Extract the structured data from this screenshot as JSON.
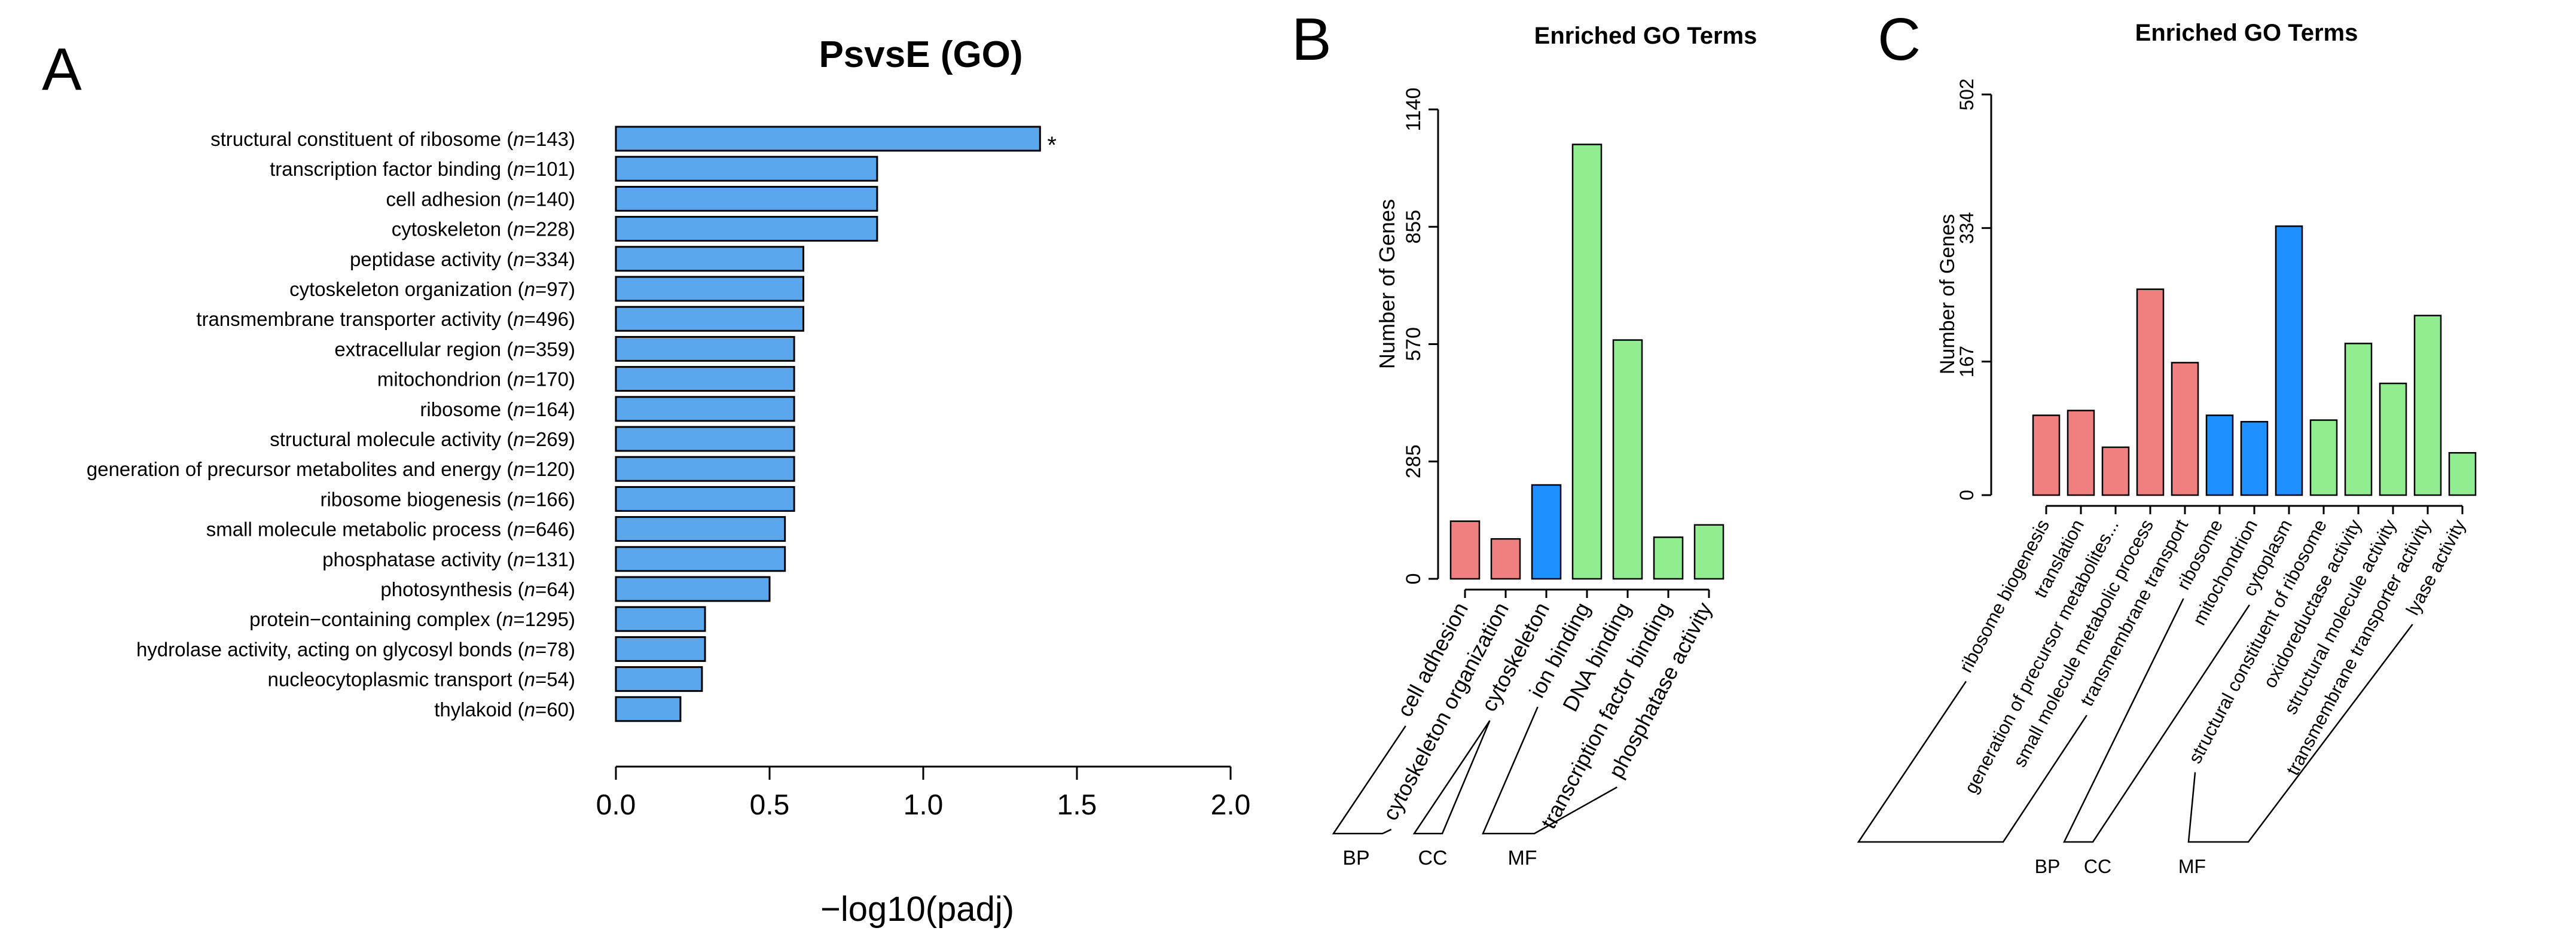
{
  "panels": [
    {
      "letter": "A"
    },
    {
      "letter": "B"
    },
    {
      "letter": "C"
    }
  ],
  "colors": {
    "bar_a": "#5BA7EE",
    "bp": "#F08080",
    "cc": "#1E90FF",
    "mf": "#90EE90",
    "stroke": "#000000"
  },
  "chart_data": [
    {
      "panel": "A",
      "type": "bar",
      "orientation": "horizontal",
      "title": "PsvsE (GO)",
      "xlabel": "−log10(padj)",
      "ylabel": "",
      "xlim": [
        0,
        2.0
      ],
      "xticks": [
        "0.0",
        "0.5",
        "1.0",
        "1.5",
        "2.0"
      ],
      "grid": false,
      "series": [
        {
          "values": [
            1.38,
            0.85,
            0.85,
            0.85,
            0.61,
            0.61,
            0.61,
            0.58,
            0.58,
            0.58,
            0.58,
            0.58,
            0.58,
            0.55,
            0.55,
            0.5,
            0.29,
            0.29,
            0.28,
            0.21
          ]
        }
      ],
      "categories": [
        {
          "term": "structural constituent of ribosome (",
          "n": "n",
          "count": "=143)"
        },
        {
          "term": "transcription factor binding (",
          "n": "n",
          "count": "=101)"
        },
        {
          "term": "cell adhesion (",
          "n": "n",
          "count": "=140)"
        },
        {
          "term": "cytoskeleton (",
          "n": "n",
          "count": "=228)"
        },
        {
          "term": "peptidase activity (",
          "n": "n",
          "count": "=334)"
        },
        {
          "term": "cytoskeleton organization (",
          "n": "n",
          "count": "=97)"
        },
        {
          "term": "transmembrane transporter activity (",
          "n": "n",
          "count": "=496)"
        },
        {
          "term": "extracellular region (",
          "n": "n",
          "count": "=359)"
        },
        {
          "term": "mitochondrion (",
          "n": "n",
          "count": "=170)"
        },
        {
          "term": "ribosome (",
          "n": "n",
          "count": "=164)"
        },
        {
          "term": "structural molecule activity (",
          "n": "n",
          "count": "=269)"
        },
        {
          "term": "generation of precursor metabolites and energy (",
          "n": "n",
          "count": "=120)"
        },
        {
          "term": "ribosome biogenesis (",
          "n": "n",
          "count": "=166)"
        },
        {
          "term": "small molecule metabolic process (",
          "n": "n",
          "count": "=646)"
        },
        {
          "term": "phosphatase activity (",
          "n": "n",
          "count": "=131)"
        },
        {
          "term": "photosynthesis (",
          "n": "n",
          "count": "=64)"
        },
        {
          "term": "protein−containing complex (",
          "n": "n",
          "count": "=1295)"
        },
        {
          "term": "hydrolase activity, acting on glycosyl bonds (",
          "n": "n",
          "count": "=78)"
        },
        {
          "term": "nucleocytoplasmic transport (",
          "n": "n",
          "count": "=54)"
        },
        {
          "term": "thylakoid (",
          "n": "n",
          "count": "=60)"
        }
      ],
      "annotations": [
        {
          "category_index": 0,
          "text": "*"
        }
      ]
    },
    {
      "panel": "B",
      "type": "bar",
      "title": "Enriched GO Terms",
      "xlabel": "",
      "ylabel": "Number of Genes",
      "ylim": [
        0,
        1140
      ],
      "yticks": [
        "0",
        "285",
        "570",
        "855",
        "1140"
      ],
      "grid": false,
      "categories": [
        "cell adhesion",
        "cytoskeleton organization",
        "cytoskeleton",
        "ion binding",
        "DNA binding",
        "transcription factor binding",
        "phosphatase activity"
      ],
      "values": [
        140,
        97,
        228,
        1055,
        580,
        101,
        131
      ],
      "category_group": [
        "BP",
        "BP",
        "CC",
        "MF",
        "MF",
        "MF",
        "MF"
      ],
      "groups": [
        "BP",
        "CC",
        "MF"
      ]
    },
    {
      "panel": "C",
      "type": "bar",
      "title": "Enriched GO Terms",
      "xlabel": "",
      "ylabel": "Number of Genes",
      "ylim": [
        0,
        502
      ],
      "yticks": [
        "0",
        "167",
        "334",
        "502"
      ],
      "grid": false,
      "categories": [
        "ribosome biogenesis",
        "translation",
        "generation of precursor metabolites...",
        "small molecule metabolic process",
        "transmembrane transport",
        "ribosome",
        "mitochondrion",
        "cytoplasm",
        "structural constituent of ribosome",
        "oxidoreductase activity",
        "structural molecule activity",
        "transmembrane transporter activity",
        "lyase activity"
      ],
      "values": [
        100,
        106,
        60,
        258,
        166,
        100,
        92,
        337,
        94,
        190,
        140,
        225,
        53
      ],
      "category_group": [
        "BP",
        "BP",
        "BP",
        "BP",
        "BP",
        "CC",
        "CC",
        "CC",
        "MF",
        "MF",
        "MF",
        "MF",
        "MF"
      ],
      "groups": [
        "BP",
        "CC",
        "MF"
      ]
    }
  ]
}
